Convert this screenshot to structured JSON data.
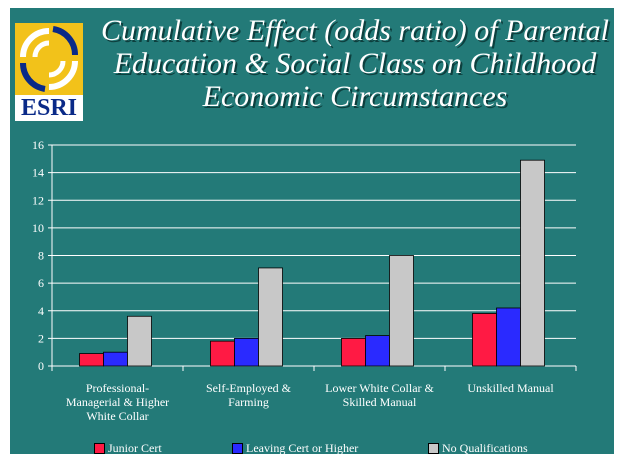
{
  "title": {
    "line1": "Cumulative Effect (odds ratio) of Parental",
    "line2": "Education & Social Class on Childhood",
    "line3": "Economic Circumstances"
  },
  "logo": {
    "text": "ESRI"
  },
  "colors": {
    "background": "#237a78",
    "junior": "#ff1a44",
    "leaving": "#2a2aff",
    "noqual": "#c8c8c8"
  },
  "chart_data": {
    "type": "bar",
    "categories": [
      [
        "Professional-",
        "Managerial & Higher",
        "White Collar"
      ],
      [
        "Self-Employed  &",
        "Farming"
      ],
      [
        "Lower White Collar &",
        "Skilled Manual"
      ],
      [
        "Unskilled Manual"
      ]
    ],
    "series": [
      {
        "name": "Junior Cert",
        "values": [
          0.9,
          1.8,
          2.0,
          3.8
        ]
      },
      {
        "name": "Leaving Cert or Higher",
        "values": [
          1.0,
          2.0,
          2.2,
          4.2
        ]
      },
      {
        "name": "No Qualifications",
        "values": [
          3.6,
          7.1,
          8.0,
          14.9
        ]
      }
    ],
    "title": "",
    "xlabel": "",
    "ylabel": "",
    "ylim": [
      0,
      16
    ],
    "yticks": [
      "0",
      "2",
      "4",
      "6",
      "8",
      "10",
      "12",
      "14",
      "16"
    ],
    "grid": true,
    "legend_position": "bottom"
  }
}
